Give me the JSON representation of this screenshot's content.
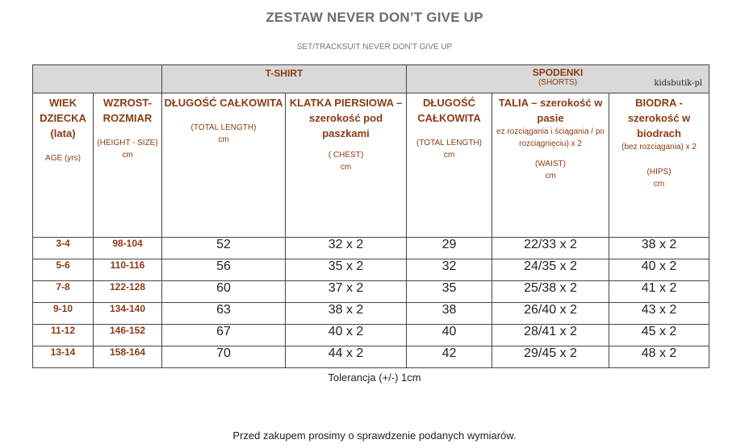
{
  "title": "ZESTAW NEVER DON’T GIVE UP",
  "subtitle": "SET/TRACKSUIT  NEVER  DON’T GIVE  UP",
  "groups": {
    "tshirt": "T-SHIRT",
    "spodenki": "SPODENKI",
    "spodenki_en": "(SHORTS)",
    "brand": "kidsbutik-pl"
  },
  "headers": {
    "age": {
      "main": "WIEK DZIECKA (lata)",
      "en": "AGE (yrs)"
    },
    "height": {
      "main": "WZROST-ROZMIAR",
      "en": "(HEIGHT - SIZE)",
      "cm": "cm"
    },
    "tshirt_length": {
      "main": "DŁUGOŚĆ CAŁKOWITA",
      "en": "(TOTAL LENGTH)",
      "cm": "cm"
    },
    "chest": {
      "main": "KLATKA PIERSIOWA – szerokość pod paszkami",
      "en": "( CHEST)",
      "cm": "cm"
    },
    "shorts_length": {
      "main": "DŁUGOŚĆ CAŁKOWITA",
      "en": "(TOTAL LENGTH)",
      "cm": "cm"
    },
    "waist": {
      "main": "TALIA – szerokość w pasie",
      "detail": "ez rozciągania i ściągania / po rozciągnięciu)  x 2",
      "en": "(WAIST)",
      "cm": "cm"
    },
    "hips": {
      "main": "BIODRA - szerokość  w biodrach",
      "detail": "(bez rozciągania) x 2",
      "en": "(HIPS)",
      "cm": "cm"
    }
  },
  "rows": [
    {
      "age": "3-4",
      "height": "98-104",
      "tlen": "52",
      "chest": "32 x 2",
      "slen": "29",
      "waist": "22/33 x 2",
      "hips": "38 x 2"
    },
    {
      "age": "5-6",
      "height": "110-116",
      "tlen": "56",
      "chest": "35 x 2",
      "slen": "32",
      "waist": "24/35 x 2",
      "hips": "40 x 2"
    },
    {
      "age": "7-8",
      "height": "122-128",
      "tlen": "60",
      "chest": "37 x 2",
      "slen": "35",
      "waist": "25/38 x 2",
      "hips": "41 x  2"
    },
    {
      "age": "9-10",
      "height": "134-140",
      "tlen": "63",
      "chest": "38 x 2",
      "slen": "38",
      "waist": "26/40 x 2",
      "hips": "43 x 2"
    },
    {
      "age": "11-12",
      "height": "146-152",
      "tlen": "67",
      "chest": "40 x 2",
      "slen": "40",
      "waist": "28/41 x 2",
      "hips": "45 x 2"
    },
    {
      "age": "13-14",
      "height": "158-164",
      "tlen": "70",
      "chest": "44 x 2",
      "slen": "42",
      "waist": "29/45 x 2",
      "hips": "48 x 2"
    }
  ],
  "tolerance": "Tolerancja (+/-) 1cm",
  "note": "Przed zakupem prosimy o sprawdzenie podanych  wymiarów."
}
